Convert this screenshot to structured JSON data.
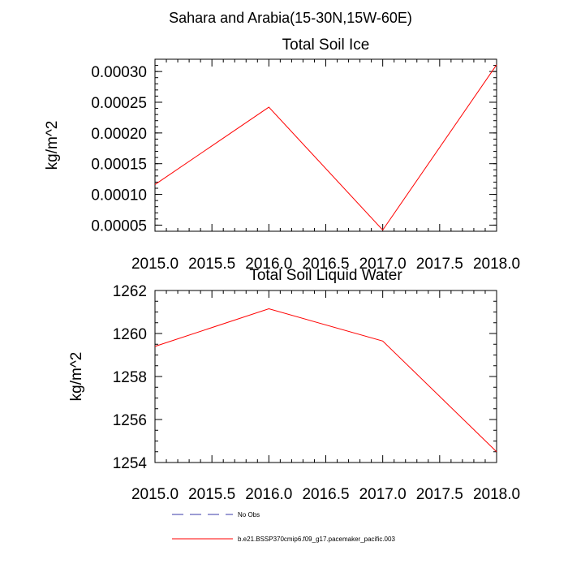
{
  "suptitle": "Sahara and Arabia(15-30N,15W-60E)",
  "legend": {
    "items": [
      {
        "label": "No Obs",
        "color": "#3a3aaa",
        "dash": true
      },
      {
        "label": "b.e21.BSSP370cmip6.f09_g17.pacemaker_pacific.003",
        "color": "#ff0000",
        "dash": false
      }
    ]
  },
  "chart_data": [
    {
      "type": "line",
      "title": "Total Soil Ice",
      "ylabel": "kg/m^2",
      "xlabel": "",
      "xlim": [
        2015.0,
        2018.0
      ],
      "ylim": [
        4e-05,
        0.00032
      ],
      "xticks": [
        "2015.0",
        "2015.5",
        "2016.0",
        "2016.5",
        "2017.0",
        "2017.5",
        "2018.0"
      ],
      "yticks": [
        "0.00005",
        "0.00010",
        "0.00015",
        "0.00020",
        "0.00025",
        "0.00030"
      ],
      "series": [
        {
          "name": "b.e21.BSSP370cmip6.f09_g17.pacemaker_pacific.003",
          "color": "#ff0000",
          "x": [
            2015.0,
            2016.0,
            2017.0,
            2018.0
          ],
          "y": [
            0.000116,
            0.000242,
            4.2e-05,
            0.000311
          ]
        }
      ]
    },
    {
      "type": "line",
      "title": "Total Soil Liquid Water",
      "ylabel": "kg/m^2",
      "xlabel": "",
      "xlim": [
        2015.0,
        2018.0
      ],
      "ylim": [
        1254.0,
        1262.0
      ],
      "xticks": [
        "2015.0",
        "2015.5",
        "2016.0",
        "2016.5",
        "2017.0",
        "2017.5",
        "2018.0"
      ],
      "yticks": [
        "1254",
        "1256",
        "1258",
        "1260",
        "1262"
      ],
      "series": [
        {
          "name": "b.e21.BSSP370cmip6.f09_g17.pacemaker_pacific.003",
          "color": "#ff0000",
          "x": [
            2015.0,
            2016.0,
            2017.0,
            2018.0
          ],
          "y": [
            1259.4,
            1261.15,
            1259.65,
            1254.5
          ]
        }
      ]
    }
  ]
}
